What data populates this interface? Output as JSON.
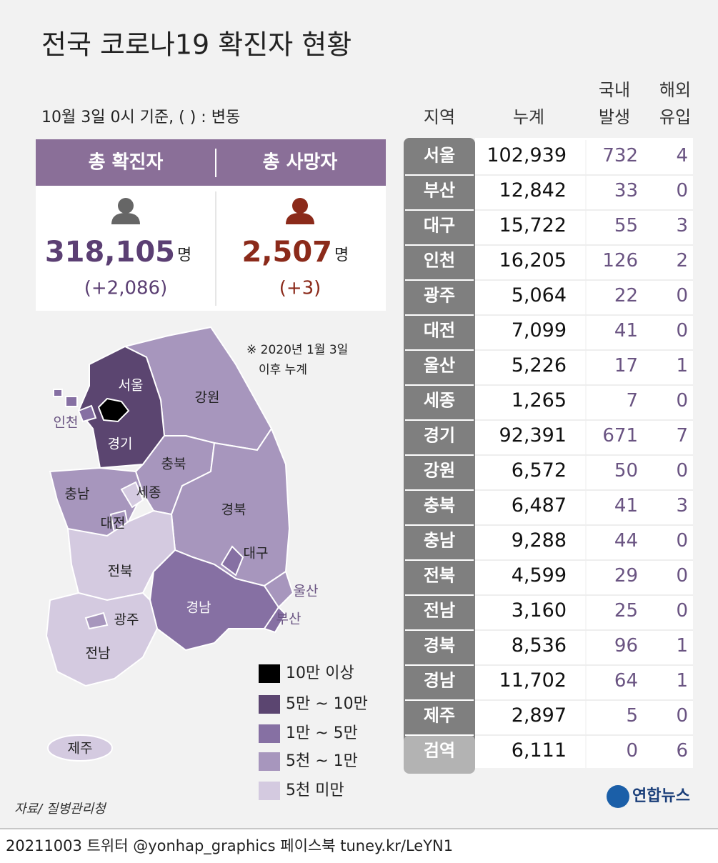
{
  "header": {
    "title": "전국 코로나19 확진자 현황",
    "note": "10월 3일 0시 기준, ( ) : 변동"
  },
  "summary": [
    {
      "label": "총 확진자",
      "value": "318,105",
      "unit": "명",
      "change": "(+2,086)"
    },
    {
      "label": "총 사망자",
      "value": "2,507",
      "unit": "명",
      "change": "(+3)"
    }
  ],
  "map": {
    "footnote": [
      "※ 2020년 1월 3일",
      "이후 누계"
    ],
    "regions": [
      "서울",
      "인천",
      "경기",
      "강원",
      "충북",
      "충남",
      "세종",
      "대전",
      "경북",
      "대구",
      "전북",
      "울산",
      "부산",
      "경남",
      "광주",
      "전남",
      "제주"
    ],
    "legend": [
      "10만 이상",
      "5만 ~ 10만",
      "1만 ~ 5만",
      "5천 ~ 1만",
      "5천 미만"
    ]
  },
  "table": {
    "columns": [
      [
        "지역"
      ],
      [
        "누계"
      ],
      [
        "국내",
        "발생"
      ],
      [
        "해외",
        "유입"
      ]
    ],
    "rows": [
      [
        "서울",
        "102,939",
        "732",
        "4"
      ],
      [
        "부산",
        "12,842",
        "33",
        "0"
      ],
      [
        "대구",
        "15,722",
        "55",
        "3"
      ],
      [
        "인천",
        "16,205",
        "126",
        "2"
      ],
      [
        "광주",
        "5,064",
        "22",
        "0"
      ],
      [
        "대전",
        "7,099",
        "41",
        "0"
      ],
      [
        "울산",
        "5,226",
        "17",
        "1"
      ],
      [
        "세종",
        "1,265",
        "7",
        "0"
      ],
      [
        "경기",
        "92,391",
        "671",
        "7"
      ],
      [
        "강원",
        "6,572",
        "50",
        "0"
      ],
      [
        "충북",
        "6,487",
        "41",
        "3"
      ],
      [
        "충남",
        "9,288",
        "44",
        "0"
      ],
      [
        "전북",
        "4,599",
        "29",
        "0"
      ],
      [
        "전남",
        "3,160",
        "25",
        "0"
      ],
      [
        "경북",
        "8,536",
        "96",
        "1"
      ],
      [
        "경남",
        "11,702",
        "64",
        "1"
      ],
      [
        "제주",
        "2,897",
        "5",
        "0"
      ],
      [
        "검역",
        "6,111",
        "0",
        "6"
      ]
    ]
  },
  "source": "자료/ 질병관리청",
  "logo": "연합뉴스",
  "footer": "20211003 트위터 @yonhap_graphics 페이스북 tuney.kr/LeYN1"
}
